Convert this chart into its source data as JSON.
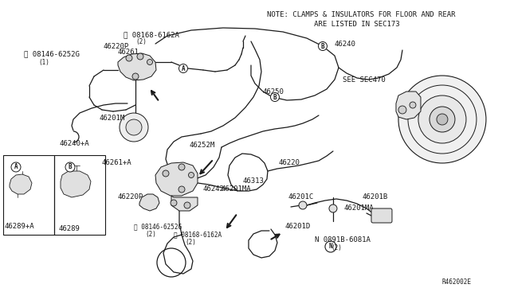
{
  "bg_color": "#ffffff",
  "line_color": "#1a1a1a",
  "text_color": "#1a1a1a",
  "note_line1": "NOTE: CLAMPS & INSULATORS FOR FLOOR AND REAR",
  "note_line2": "           ARE LISTED IN SEC173",
  "see_text": "SEE SEC470",
  "ref_code": "R462002E",
  "font_size": 6.5,
  "font_size_small": 5.5,
  "lw_pipe": 0.9,
  "lw_thin": 0.6
}
